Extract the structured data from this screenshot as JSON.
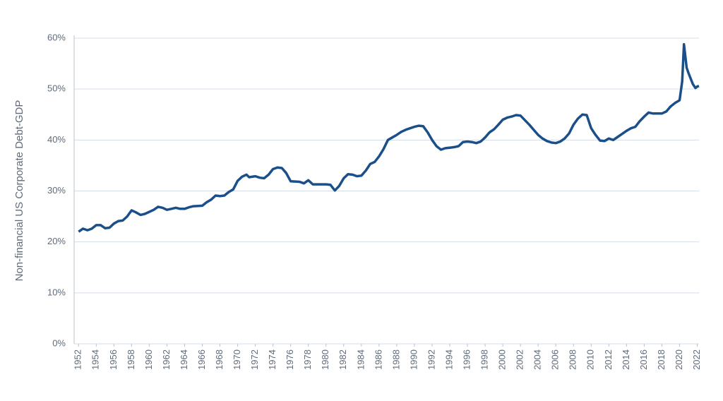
{
  "chart_data": {
    "type": "line",
    "y_label": "Non-financial US Corporate Debt-GDP",
    "x": [
      1952,
      1952.5,
      1953,
      1953.5,
      1954,
      1954.5,
      1955,
      1955.5,
      1956,
      1956.5,
      1957,
      1957.5,
      1958,
      1958.5,
      1959,
      1959.5,
      1960,
      1960.5,
      1961,
      1961.5,
      1962,
      1962.5,
      1963,
      1963.5,
      1964,
      1964.5,
      1965,
      1966,
      1966.5,
      1967,
      1967.5,
      1968,
      1968.5,
      1969,
      1969.5,
      1970,
      1970.5,
      1971,
      1971.3,
      1972,
      1972.5,
      1973,
      1973.5,
      1974,
      1974.5,
      1975,
      1975.5,
      1976,
      1977,
      1977.5,
      1978,
      1978.5,
      1979,
      1980,
      1980.5,
      1981,
      1981.5,
      1982,
      1982.5,
      1983,
      1983.5,
      1984,
      1984.5,
      1985,
      1985.5,
      1986,
      1986.5,
      1987,
      1987.5,
      1988,
      1988.5,
      1989,
      1989.5,
      1990,
      1990.5,
      1991,
      1991.5,
      1992,
      1992.5,
      1993,
      1993.5,
      1994,
      1994.5,
      1995,
      1995.5,
      1996,
      1996.5,
      1997,
      1997.5,
      1998,
      1998.5,
      1999,
      1999.5,
      2000,
      2000.5,
      2001,
      2001.5,
      2002,
      2002.5,
      2003,
      2003.5,
      2004,
      2004.5,
      2005,
      2005.5,
      2006,
      2006.5,
      2007,
      2007.5,
      2008,
      2008.5,
      2009,
      2009.5,
      2010,
      2010.5,
      2011,
      2011.5,
      2012,
      2012.5,
      2013,
      2013.5,
      2014,
      2014.5,
      2015,
      2015.5,
      2016,
      2016.5,
      2017,
      2017.5,
      2018,
      2018.5,
      2019,
      2019.5,
      2020,
      2020.3,
      2020.5,
      2020.8,
      2021,
      2021.5,
      2021.8,
      2022,
      2022.2
    ],
    "series": [
      {
        "name": "Non-financial US Corporate Debt-GDP",
        "color": "#1b4f8a",
        "values": [
          22.0,
          22.6,
          22.3,
          22.6,
          23.3,
          23.3,
          22.7,
          22.8,
          23.6,
          24.1,
          24.2,
          25.0,
          26.2,
          25.8,
          25.3,
          25.5,
          25.9,
          26.3,
          26.9,
          26.7,
          26.3,
          26.5,
          26.7,
          26.5,
          26.5,
          26.8,
          27.0,
          27.1,
          27.8,
          28.3,
          29.1,
          29.0,
          29.1,
          29.8,
          30.3,
          32.0,
          32.8,
          33.2,
          32.7,
          32.9,
          32.6,
          32.5,
          33.2,
          34.3,
          34.6,
          34.5,
          33.5,
          31.9,
          31.8,
          31.5,
          32.1,
          31.3,
          31.3,
          31.3,
          31.2,
          30.1,
          31.0,
          32.5,
          33.3,
          33.2,
          32.9,
          33.0,
          34.0,
          35.3,
          35.7,
          36.8,
          38.2,
          40.0,
          40.5,
          41.0,
          41.6,
          42.0,
          42.3,
          42.6,
          42.8,
          42.7,
          41.5,
          40.0,
          38.8,
          38.1,
          38.4,
          38.5,
          38.6,
          38.8,
          39.6,
          39.7,
          39.6,
          39.4,
          39.7,
          40.5,
          41.5,
          42.1,
          43.0,
          44.0,
          44.4,
          44.6,
          44.9,
          44.8,
          43.9,
          43.0,
          42.0,
          41.0,
          40.3,
          39.8,
          39.5,
          39.4,
          39.7,
          40.3,
          41.3,
          43.0,
          44.2,
          45.0,
          44.9,
          42.3,
          41.0,
          39.9,
          39.8,
          40.3,
          40.0,
          40.6,
          41.2,
          41.8,
          42.3,
          42.6,
          43.7,
          44.6,
          45.4,
          45.2,
          45.2,
          45.2,
          45.6,
          46.6,
          47.3,
          47.8,
          51.5,
          58.8,
          54.2,
          53.2,
          51.0,
          50.2,
          50.5,
          50.6
        ]
      }
    ],
    "xlim": [
      1951.5,
      2022.2
    ],
    "xticks": [
      1952,
      1954,
      1956,
      1958,
      1960,
      1962,
      1964,
      1966,
      1968,
      1970,
      1972,
      1974,
      1976,
      1978,
      1980,
      1982,
      1984,
      1986,
      1988,
      1990,
      1992,
      1994,
      1996,
      1998,
      2000,
      2002,
      2004,
      2006,
      2008,
      2010,
      2012,
      2014,
      2016,
      2018,
      2020,
      2022
    ],
    "ylim": [
      0,
      60
    ],
    "yticks": [
      {
        "value": 0,
        "label": "0%"
      },
      {
        "value": 10,
        "label": "10%"
      },
      {
        "value": 20,
        "label": "20%"
      },
      {
        "value": 30,
        "label": "30%"
      },
      {
        "value": 40,
        "label": "40%"
      },
      {
        "value": 50,
        "label": "50%"
      },
      {
        "value": 60,
        "label": "60%"
      }
    ],
    "grid": true
  }
}
